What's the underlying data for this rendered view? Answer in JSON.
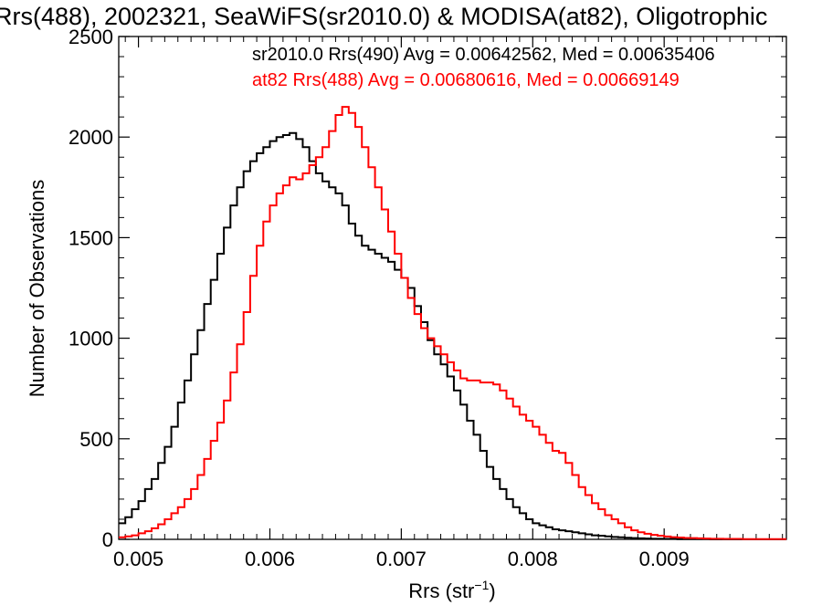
{
  "chart_data": {
    "type": "line",
    "title": "Rrs(488), 2002321, SeaWiFS(sr2010.0) & MODISA(at82), Oligotrophic",
    "xlabel": "Rrs (str",
    "xlabel_sup": "−1",
    "xlabel_close": ")",
    "ylabel": "Number of Observations",
    "xlim": [
      0.00485,
      0.00993
    ],
    "ylim": [
      0,
      2500
    ],
    "x_ticks": [
      0.005,
      0.006,
      0.007,
      0.008,
      0.009
    ],
    "x_tick_labels": [
      "0.005",
      "0.006",
      "0.007",
      "0.008",
      "0.009"
    ],
    "y_ticks": [
      0,
      500,
      1000,
      1500,
      2000,
      2500
    ],
    "y_tick_labels": [
      "0",
      "500",
      "1000",
      "1500",
      "2000",
      "2500"
    ],
    "grid": false,
    "legend_position": "top-right",
    "series": [
      {
        "name": "sr2010.0 Rrs(490) Avg = 0.00642562, Med = 0.00635406",
        "color": "#000000",
        "x": [
          0.00485,
          0.0049,
          0.00495,
          0.005,
          0.00505,
          0.0051,
          0.00515,
          0.0052,
          0.00525,
          0.0053,
          0.00535,
          0.0054,
          0.00545,
          0.0055,
          0.00555,
          0.0056,
          0.00565,
          0.0057,
          0.00575,
          0.0058,
          0.00585,
          0.0059,
          0.00595,
          0.006,
          0.00605,
          0.0061,
          0.00615,
          0.0062,
          0.00625,
          0.0063,
          0.00635,
          0.0064,
          0.00645,
          0.0065,
          0.00655,
          0.0066,
          0.00665,
          0.0067,
          0.00675,
          0.0068,
          0.00685,
          0.0069,
          0.00695,
          0.007,
          0.00705,
          0.0071,
          0.00715,
          0.0072,
          0.00725,
          0.0073,
          0.00735,
          0.0074,
          0.00745,
          0.0075,
          0.00755,
          0.0076,
          0.00765,
          0.0077,
          0.00775,
          0.0078,
          0.00785,
          0.0079,
          0.00795,
          0.008,
          0.00805,
          0.0081,
          0.00815,
          0.0082,
          0.00825,
          0.0083,
          0.00835,
          0.0084,
          0.00845,
          0.0085,
          0.00855,
          0.0086,
          0.00865,
          0.0087,
          0.00875,
          0.0088,
          0.00885,
          0.0089,
          0.00895,
          0.009,
          0.00905,
          0.0091,
          0.00915,
          0.0092,
          0.00925,
          0.0093,
          0.00935,
          0.0094,
          0.00945,
          0.0095,
          0.00955,
          0.0096,
          0.00965,
          0.0097,
          0.00975,
          0.0098,
          0.00985,
          0.0099
        ],
        "y": [
          80,
          110,
          150,
          190,
          250,
          300,
          380,
          460,
          560,
          680,
          790,
          920,
          1040,
          1170,
          1290,
          1420,
          1550,
          1660,
          1750,
          1830,
          1880,
          1920,
          1950,
          1980,
          2000,
          2010,
          2020,
          1990,
          1950,
          1880,
          1820,
          1780,
          1750,
          1720,
          1660,
          1570,
          1510,
          1460,
          1440,
          1420,
          1400,
          1380,
          1340,
          1300,
          1250,
          1160,
          1080,
          990,
          920,
          870,
          810,
          740,
          670,
          590,
          520,
          440,
          360,
          300,
          250,
          200,
          160,
          130,
          100,
          80,
          70,
          60,
          50,
          45,
          40,
          35,
          30,
          25,
          20,
          18,
          15,
          12,
          10,
          8,
          6,
          5,
          4,
          3,
          3,
          2,
          2,
          1,
          1,
          1,
          1,
          1,
          0,
          0,
          0,
          0,
          0,
          0,
          0,
          0,
          0,
          0,
          0,
          0
        ]
      },
      {
        "name": "at82 Rrs(488) Avg = 0.00680616, Med = 0.00669149",
        "color": "#ff0000",
        "x": [
          0.00485,
          0.0049,
          0.00495,
          0.005,
          0.00505,
          0.0051,
          0.00515,
          0.0052,
          0.00525,
          0.0053,
          0.00535,
          0.0054,
          0.00545,
          0.0055,
          0.00555,
          0.0056,
          0.00565,
          0.0057,
          0.00575,
          0.0058,
          0.00585,
          0.0059,
          0.00595,
          0.006,
          0.00605,
          0.0061,
          0.00615,
          0.0062,
          0.00625,
          0.0063,
          0.00635,
          0.0064,
          0.00645,
          0.0065,
          0.00655,
          0.0066,
          0.00665,
          0.0067,
          0.00675,
          0.0068,
          0.00685,
          0.0069,
          0.00695,
          0.007,
          0.00705,
          0.0071,
          0.00715,
          0.0072,
          0.00725,
          0.0073,
          0.00735,
          0.0074,
          0.00745,
          0.0075,
          0.00755,
          0.0076,
          0.00765,
          0.0077,
          0.00775,
          0.0078,
          0.00785,
          0.0079,
          0.00795,
          0.008,
          0.00805,
          0.0081,
          0.00815,
          0.0082,
          0.00825,
          0.0083,
          0.00835,
          0.0084,
          0.00845,
          0.0085,
          0.00855,
          0.0086,
          0.00865,
          0.0087,
          0.00875,
          0.0088,
          0.00885,
          0.0089,
          0.00895,
          0.009,
          0.00905,
          0.0091,
          0.00915,
          0.0092,
          0.00925,
          0.0093,
          0.00935,
          0.0094,
          0.00945,
          0.0095,
          0.00955,
          0.0096,
          0.00965,
          0.0097,
          0.00975,
          0.0098,
          0.00985,
          0.0099
        ],
        "y": [
          10,
          15,
          20,
          30,
          40,
          55,
          75,
          100,
          130,
          160,
          200,
          250,
          320,
          400,
          490,
          580,
          690,
          830,
          970,
          1130,
          1310,
          1460,
          1580,
          1660,
          1720,
          1760,
          1800,
          1790,
          1820,
          1860,
          1900,
          1950,
          2030,
          2110,
          2150,
          2120,
          2050,
          1950,
          1850,
          1750,
          1640,
          1530,
          1420,
          1300,
          1200,
          1120,
          1050,
          1000,
          960,
          920,
          880,
          840,
          800,
          790,
          790,
          780,
          780,
          770,
          740,
          700,
          660,
          620,
          590,
          560,
          520,
          480,
          440,
          430,
          380,
          320,
          260,
          220,
          180,
          150,
          120,
          100,
          80,
          60,
          45,
          35,
          28,
          22,
          18,
          14,
          11,
          9,
          7,
          6,
          5,
          4,
          3,
          3,
          2,
          2,
          2,
          1,
          1,
          1,
          1,
          1,
          1,
          1
        ]
      }
    ]
  }
}
